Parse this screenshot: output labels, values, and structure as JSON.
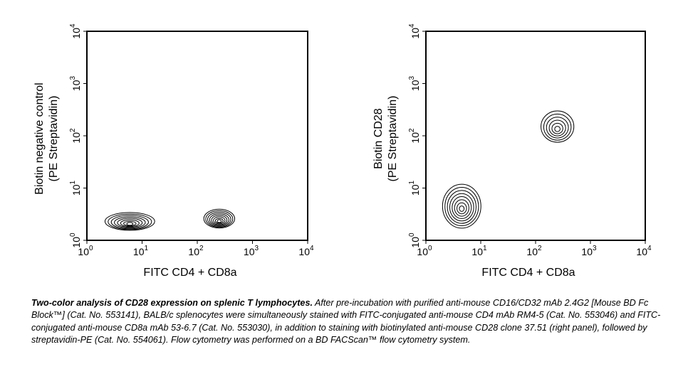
{
  "chart_data": [
    {
      "type": "contour",
      "xlabel": "FITC CD4 + CD8a",
      "ylabel": [
        "Biotin negative control",
        "(PE Streptavidin)"
      ],
      "x_scale": "log",
      "y_scale": "log",
      "xlim": [
        1,
        10000
      ],
      "ylim": [
        1,
        10000
      ],
      "x_ticks": [
        1,
        10,
        100,
        1000,
        10000
      ],
      "y_ticks": [
        1,
        10,
        100,
        1000,
        10000
      ],
      "tick_base": "10",
      "tick_exponents": [
        "0",
        "1",
        "2",
        "3",
        "4"
      ],
      "populations": [
        {
          "center": [
            6,
            2.3
          ],
          "spread": [
            0.45,
            0.17
          ],
          "levels": 8
        },
        {
          "center": [
            250,
            2.6
          ],
          "spread": [
            0.28,
            0.18
          ],
          "levels": 8
        }
      ]
    },
    {
      "type": "contour",
      "xlabel": "FITC CD4 + CD8a",
      "ylabel": [
        "Biotin CD28",
        "(PE Streptavidin)"
      ],
      "x_scale": "log",
      "y_scale": "log",
      "xlim": [
        1,
        10000
      ],
      "ylim": [
        1,
        10000
      ],
      "x_ticks": [
        1,
        10,
        100,
        1000,
        10000
      ],
      "y_ticks": [
        1,
        10,
        100,
        1000,
        10000
      ],
      "tick_base": "10",
      "tick_exponents": [
        "0",
        "1",
        "2",
        "3",
        "4"
      ],
      "populations": [
        {
          "center": [
            4.5,
            4.5
          ],
          "spread": [
            0.35,
            0.42
          ],
          "levels": 8
        },
        {
          "center": [
            250,
            150
          ],
          "spread": [
            0.3,
            0.3
          ],
          "levels": 6
        }
      ]
    }
  ],
  "caption": {
    "lead": "Two-color analysis of CD28 expression on splenic T lymphocytes.",
    "body": " After pre-incubation with purified anti-mouse CD16/CD32 mAb 2.4G2 [Mouse BD Fc Block™] (Cat. No. 553141), BALB/c splenocytes were simultaneously stained with FITC-conjugated anti-mouse CD4 mAb RM4-5 (Cat. No. 553046) and FITC-conjugated anti-mouse CD8a mAb 53-6.7 (Cat. No. 553030), in addition to staining with biotinylated anti-mouse CD28 clone 37.51 (right panel), followed by streptavidin-PE (Cat. No. 554061). Flow cytometry was performed on a BD FACScan™ flow cytometry system."
  }
}
